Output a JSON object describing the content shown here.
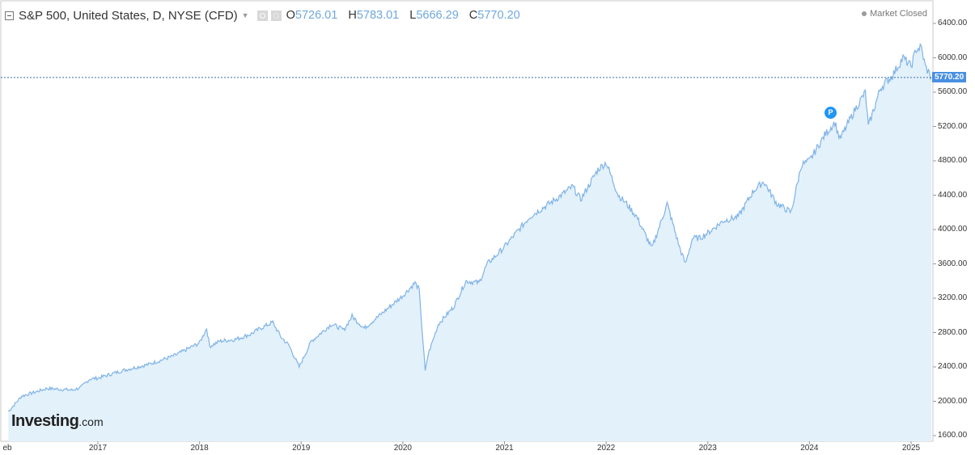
{
  "header": {
    "symbol_title": "S&P 500, United States, D, NYSE (CFD)",
    "ohlc": {
      "open_label": "O",
      "open": "5726.01",
      "high_label": "H",
      "high": "5783.01",
      "low_label": "L",
      "low": "5666.29",
      "close_label": "C",
      "close": "5770.20"
    },
    "market_status": "Market Closed"
  },
  "price_tag": "5770.20",
  "badge": "P",
  "watermark": {
    "brand": "Investing",
    "domain": ".com"
  },
  "colors": {
    "line": "#7fb3e6",
    "fill": "#e3f1fb",
    "ohlc_values": "#6fa8dc",
    "price_tag": "#4a90e2",
    "badge": "#2196f3"
  },
  "icons": [
    "collapse-icon",
    "dropdown-caret-icon",
    "visibility-icon",
    "settings-icon",
    "status-dot-icon"
  ],
  "chart_data": {
    "type": "area",
    "title": "S&P 500, United States, D, NYSE (CFD)",
    "ylim": [
      1600,
      6400
    ],
    "y_ticks": [
      "6400.00",
      "6000.00",
      "5600.00",
      "5200.00",
      "4800.00",
      "4400.00",
      "4000.00",
      "3600.00",
      "3200.00",
      "2800.00",
      "2400.00",
      "2000.00",
      "1600.00"
    ],
    "x_ticks": [
      "eb",
      "2017",
      "2018",
      "2019",
      "2020",
      "2021",
      "2022",
      "2023",
      "2024",
      "2025"
    ],
    "last_value": 5770.2,
    "x_domain": [
      2016.12,
      2025.2
    ],
    "series": [
      {
        "x": [
          2016.12,
          2016.25,
          2016.5,
          2016.75,
          2016.83,
          2016.92,
          2017.0,
          2017.25,
          2017.5,
          2017.75,
          2018.0,
          2018.07,
          2018.1,
          2018.2,
          2018.35,
          2018.5,
          2018.6,
          2018.72,
          2018.8,
          2018.88,
          2018.98,
          2019.1,
          2019.3,
          2019.42,
          2019.5,
          2019.62,
          2019.75,
          2019.92,
          2020.0,
          2020.12,
          2020.16,
          2020.22,
          2020.25,
          2020.35,
          2020.5,
          2020.62,
          2020.75,
          2020.83,
          2020.92,
          2021.0,
          2021.25,
          2021.5,
          2021.67,
          2021.75,
          2021.92,
          2022.0,
          2022.12,
          2022.2,
          2022.3,
          2022.45,
          2022.6,
          2022.72,
          2022.78,
          2022.85,
          2022.92,
          2023.0,
          2023.15,
          2023.3,
          2023.45,
          2023.55,
          2023.68,
          2023.82,
          2023.92,
          2024.0,
          2024.15,
          2024.25,
          2024.3,
          2024.45,
          2024.55,
          2024.58,
          2024.7,
          2024.82,
          2024.92,
          2025.0,
          2025.05,
          2025.1,
          2025.14,
          2025.2
        ],
        "y": [
          1880,
          2060,
          2150,
          2130,
          2160,
          2260,
          2270,
          2360,
          2430,
          2530,
          2680,
          2850,
          2640,
          2700,
          2720,
          2780,
          2850,
          2920,
          2750,
          2650,
          2400,
          2700,
          2900,
          2830,
          2990,
          2850,
          2980,
          3150,
          3230,
          3380,
          3300,
          2350,
          2550,
          2900,
          3100,
          3400,
          3380,
          3600,
          3700,
          3800,
          4150,
          4350,
          4500,
          4350,
          4700,
          4780,
          4400,
          4300,
          4150,
          3780,
          4300,
          3800,
          3600,
          3900,
          3900,
          3960,
          4100,
          4150,
          4450,
          4560,
          4300,
          4200,
          4750,
          4800,
          5100,
          5250,
          5050,
          5400,
          5600,
          5200,
          5650,
          5800,
          6000,
          5900,
          6100,
          6120,
          5900,
          5770
        ]
      }
    ]
  }
}
